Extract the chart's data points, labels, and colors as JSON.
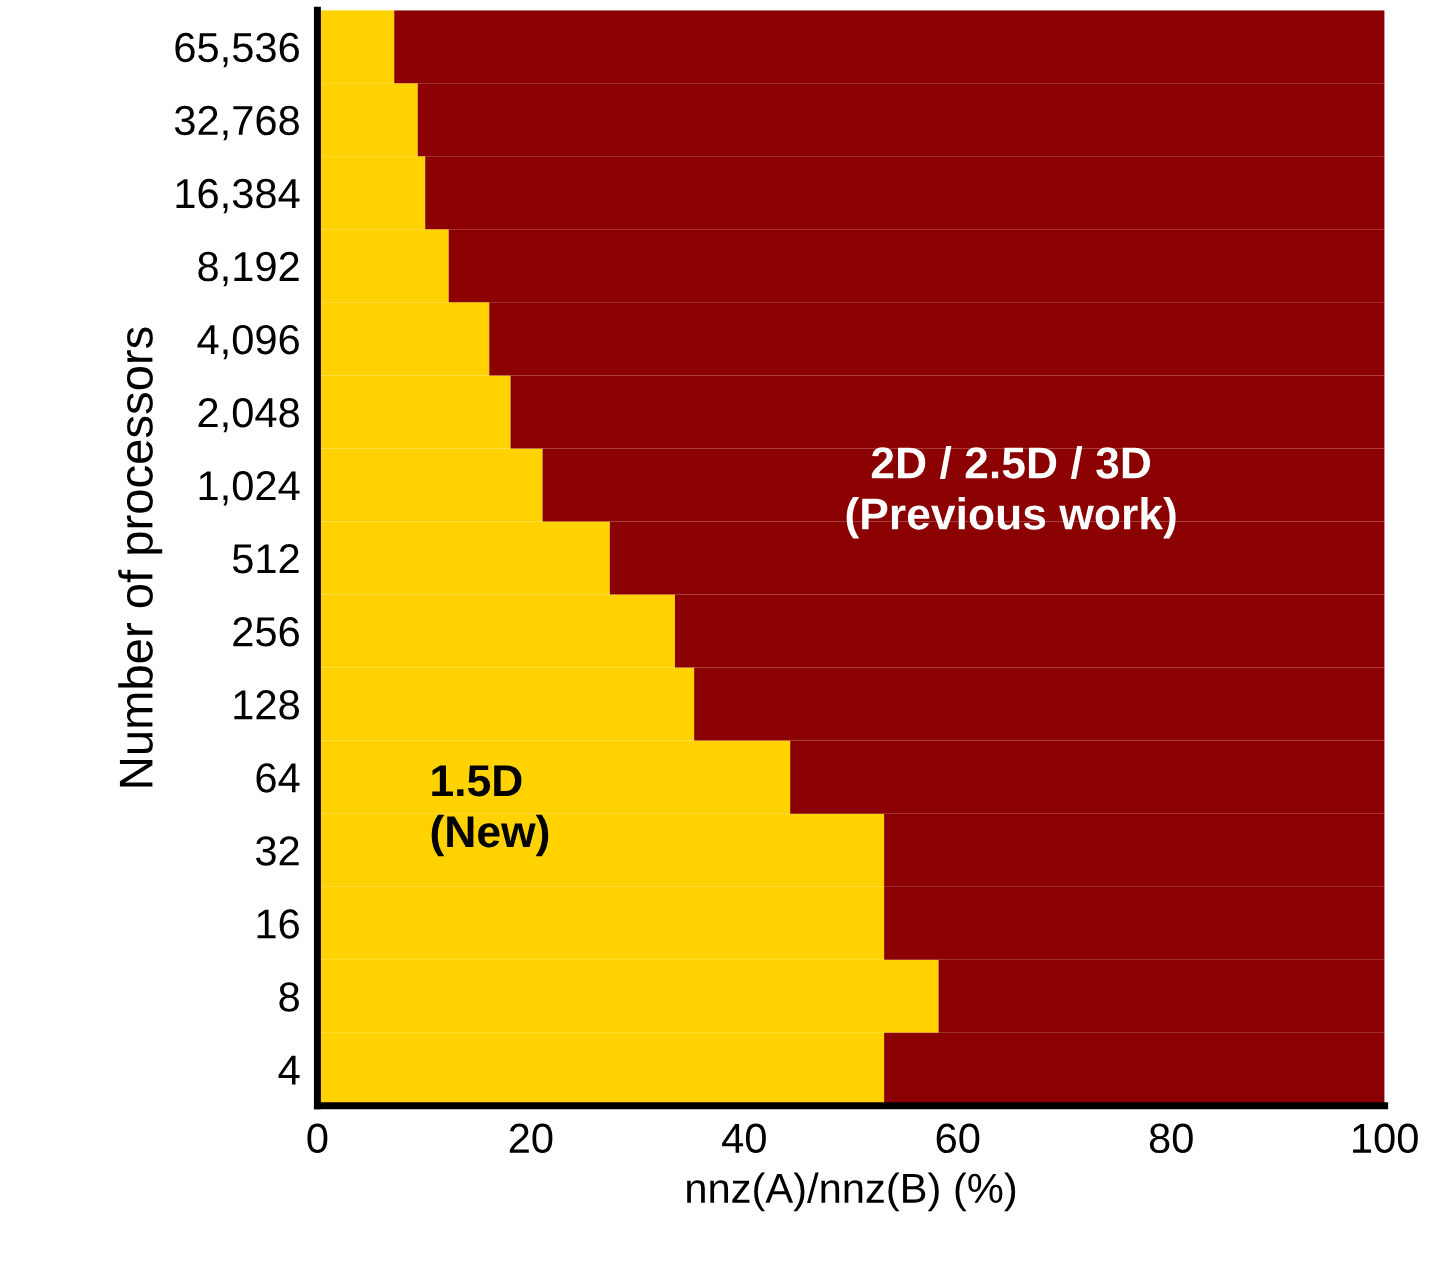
{
  "chart_data": {
    "type": "bar",
    "orientation": "horizontal",
    "stacked": true,
    "categories": [
      "65,536",
      "32,768",
      "16,384",
      "8,192",
      "4,096",
      "2,048",
      "1,024",
      "512",
      "256",
      "128",
      "64",
      "32",
      "16",
      "8",
      "4"
    ],
    "series": [
      {
        "color": "#ffd200",
        "values": [
          7.2,
          9.4,
          10.1,
          12.3,
          16.1,
          18.1,
          21.1,
          27.4,
          33.5,
          35.3,
          44.3,
          53.1,
          53.1,
          58.2,
          53.1
        ]
      },
      {
        "color": "#8b0000",
        "values": [
          92.8,
          90.6,
          89.9,
          87.7,
          83.9,
          81.9,
          78.9,
          72.6,
          66.5,
          64.7,
          55.7,
          46.9,
          46.9,
          41.8,
          46.9
        ]
      }
    ],
    "xlim": [
      0,
      100
    ],
    "xticks": [
      0,
      20,
      40,
      60,
      80,
      100
    ],
    "xlabel": "nnz(A)/nnz(B) (%)",
    "ylabel": "Number of processors",
    "annotations": [
      "2D / 2.5D / 3D\n(Previous work)",
      "1.5D\n(New)"
    ],
    "grid": false,
    "legend": false
  }
}
